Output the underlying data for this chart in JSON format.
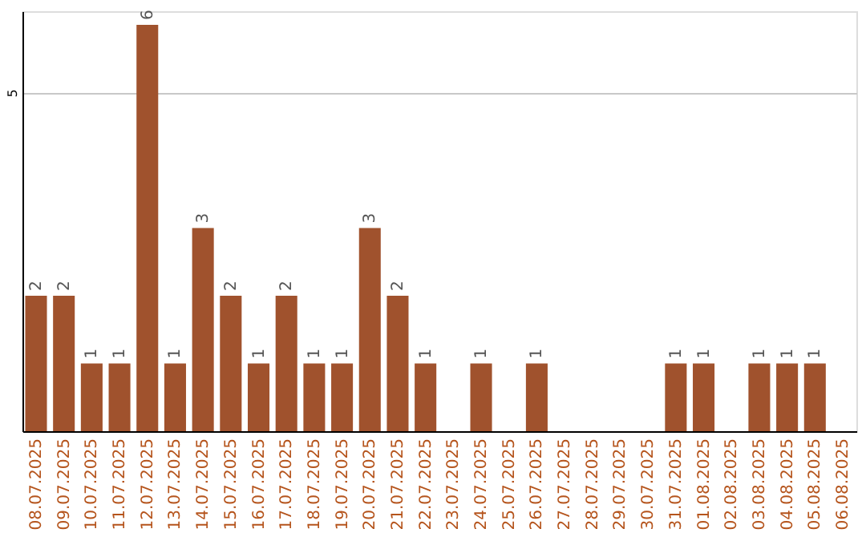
{
  "chart_data": {
    "type": "bar",
    "categories": [
      "08.07.2025",
      "09.07.2025",
      "10.07.2025",
      "11.07.2025",
      "12.07.2025",
      "13.07.2025",
      "14.07.2025",
      "15.07.2025",
      "16.07.2025",
      "17.07.2025",
      "18.07.2025",
      "19.07.2025",
      "20.07.2025",
      "21.07.2025",
      "22.07.2025",
      "23.07.2025",
      "24.07.2025",
      "25.07.2025",
      "26.07.2025",
      "27.07.2025",
      "28.07.2025",
      "29.07.2025",
      "30.07.2025",
      "31.07.2025",
      "01.08.2025",
      "02.08.2025",
      "03.08.2025",
      "04.08.2025",
      "05.08.2025",
      "06.08.2025"
    ],
    "values": [
      2,
      2,
      1,
      1,
      6,
      1,
      3,
      2,
      1,
      2,
      1,
      1,
      3,
      2,
      1,
      null,
      1,
      null,
      1,
      null,
      null,
      null,
      null,
      1,
      1,
      null,
      1,
      1,
      1,
      null
    ],
    "color": "#a0522d",
    "ylim": [
      0,
      6.2
    ],
    "yticks": [
      5
    ],
    "grid": "y",
    "data_labels": true
  }
}
